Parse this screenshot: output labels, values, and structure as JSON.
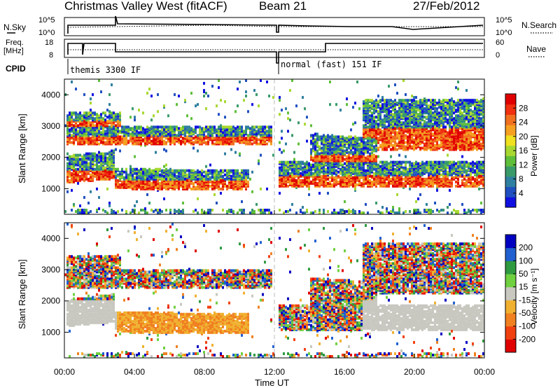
{
  "header": {
    "site": "Christmas Valley West (fitACF)",
    "beam": "Beam 21",
    "date": "27/Feb/2012"
  },
  "top_panels": {
    "nsky_label": "N.Sky",
    "nsky_ticks": [
      "10^5",
      "10^0"
    ],
    "nsearch_label": "N.Search",
    "nsearch_ticks": [
      "10^5",
      "10^0"
    ],
    "freq_label_1": "Freq.",
    "freq_label_2": "[MHz]",
    "freq_ticks": [
      "18",
      "8"
    ],
    "nave_label": "Nave",
    "nave_ticks": [
      "60",
      "0"
    ],
    "cpid_label": "CPID",
    "cpid_modes": [
      "themis 3300 IF",
      "normal (fast) 151 IF"
    ]
  },
  "chart_data": [
    {
      "type": "heatmap",
      "title": "",
      "ylabel": "Slant Range [km]",
      "xlabel": "",
      "x_ticks": [
        "00:00",
        "04:00",
        "08:00",
        "12:00",
        "16:00",
        "20:00",
        "00:00"
      ],
      "y_ticks": [
        "1000",
        "2000",
        "3000",
        "4000"
      ],
      "ylim": [
        180,
        4500
      ],
      "xlim": [
        0,
        24
      ],
      "colorbar": {
        "label": "Power [dB]",
        "ticks": [
          "4",
          "8",
          "12",
          "16",
          "20",
          "24",
          "28"
        ],
        "colors": [
          "#1010e0",
          "#2050c0",
          "#2f7fa0",
          "#3a9a6a",
          "#5fbf3a",
          "#a8d830",
          "#f0e020",
          "#f5a020",
          "#f07020",
          "#f03010",
          "#e00000"
        ]
      }
    },
    {
      "type": "heatmap",
      "title": "",
      "ylabel": "Slant Range [km]",
      "xlabel": "Time UT",
      "x_ticks": [
        "00:00",
        "04:00",
        "08:00",
        "12:00",
        "16:00",
        "20:00",
        "00:00"
      ],
      "y_ticks": [
        "1000",
        "2000",
        "3000",
        "4000"
      ],
      "ylim": [
        180,
        4500
      ],
      "xlim": [
        0,
        24
      ],
      "colorbar": {
        "label": "Velocity [m s⁻¹]",
        "ticks": [
          "200",
          "100",
          "50",
          "15",
          "-15",
          "-50",
          "-100",
          "-200"
        ],
        "colors": [
          "#0000c0",
          "#2060d0",
          "#2f9a40",
          "#6fd040",
          "#c8c8c0",
          "#f0b030",
          "#f08020",
          "#f04010",
          "#e00000"
        ]
      }
    }
  ]
}
